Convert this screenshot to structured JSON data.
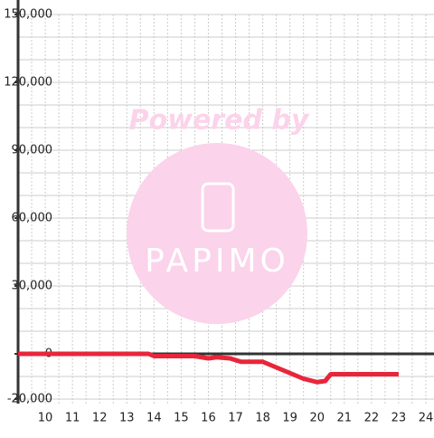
{
  "chart_data": {
    "type": "line",
    "watermark": {
      "title": "Powered by",
      "logo": "PAPIMO"
    },
    "x": [
      9,
      13.8,
      14,
      15.5,
      16,
      16.3,
      16.8,
      17.2,
      18,
      18.5,
      19,
      19.5,
      20,
      20.3,
      20.5,
      21,
      23
    ],
    "series": [
      {
        "color": "#e8263a",
        "values": [
          0,
          0,
          -1000,
          -1000,
          -2000,
          -1500,
          -2000,
          -3500,
          -3500,
          -6000,
          -8500,
          -11000,
          -12500,
          -12000,
          -9000,
          -9000,
          -9000
        ]
      }
    ],
    "xlim": [
      9,
      24.3
    ],
    "xticks": [
      10,
      11,
      12,
      13,
      14,
      15,
      16,
      17,
      18,
      19,
      20,
      21,
      22,
      23,
      24
    ],
    "x_minor_ticks": [
      9.5,
      10.5,
      11.5,
      12.5,
      13.5,
      14.5,
      15.5,
      16.5,
      17.5,
      18.5,
      19.5,
      20.5,
      21.5,
      22.5,
      23.5
    ],
    "ylim": [
      -22000,
      150000
    ],
    "yticks": [
      {
        "value": -20000,
        "label": "-20,000"
      },
      0,
      {
        "value": 30000,
        "label": "30,000"
      },
      {
        "value": 60000,
        "label": "60,000"
      },
      {
        "value": 90000,
        "label": "90,000"
      },
      {
        "value": 120000,
        "label": "120,000"
      },
      {
        "value": 150000,
        "label": "150,000"
      }
    ],
    "y_minor_ticks": [
      -10000,
      10000,
      20000,
      40000,
      50000,
      70000,
      80000,
      100000,
      110000,
      130000,
      140000
    ],
    "grid": true
  }
}
